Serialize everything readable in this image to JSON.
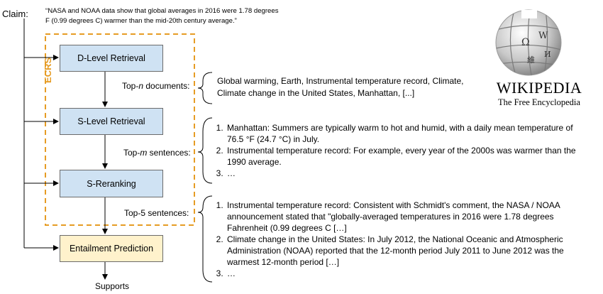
{
  "claim": {
    "label": "Claim:",
    "text": "“NASA and NOAA data show that global averages in 2016 were 1.78 degrees F (0.99 degrees C) warmer than the mid-20th century average.”"
  },
  "ecrs_label": "ECRS",
  "stages": {
    "d_level": "D-Level Retrieval",
    "s_level": "S-Level Retrieval",
    "s_rerank": "S-Reranking",
    "entailment": "Entailment Prediction"
  },
  "edge_labels": {
    "docs_prefix": "Top-",
    "docs_var": "n",
    "docs_suffix": " documents:",
    "sents_prefix": "Top-",
    "sents_var": "m",
    "sents_suffix": " sentences:",
    "top5": "Top-5 sentences:"
  },
  "output": "Supports",
  "documents": "Global warming, Earth, Instrumental temperature record, Climate, Climate change in the United States, Manhattan, [...]",
  "top_m_sentences": [
    "Manhattan: Summers are typically warm to hot and humid, with a daily mean temperature of 76.5 °F (24.7 °C) in July.",
    "Instrumental temperature record: For example, every year of the 2000s was warmer than the 1990 average.",
    "…"
  ],
  "top5_sentences": [
    "Instrumental temperature record: Consistent with Schmidt's comment, the NASA / NOAA announcement stated that \"globally-averaged temperatures in 2016 were 1.78 degrees Fahrenheit (0.99 degrees C […]",
    "Climate change in the United States: In July 2012, the National Oceanic and Atmospheric Administration (NOAA) reported that the 12-month period July 2011 to June 2012 was the warmest 12-month period […]",
    "…"
  ],
  "wikipedia": {
    "wordmark": "WIKIPEDIA",
    "tagline": "The Free Encyclopedia",
    "globe_glyphs": [
      "Ω",
      "W",
      "維",
      "И"
    ]
  },
  "colors": {
    "retrieval_box": "#cfe2f3",
    "entailment_box": "#fff2cc",
    "ecrs_dashed": "#e69c24"
  }
}
